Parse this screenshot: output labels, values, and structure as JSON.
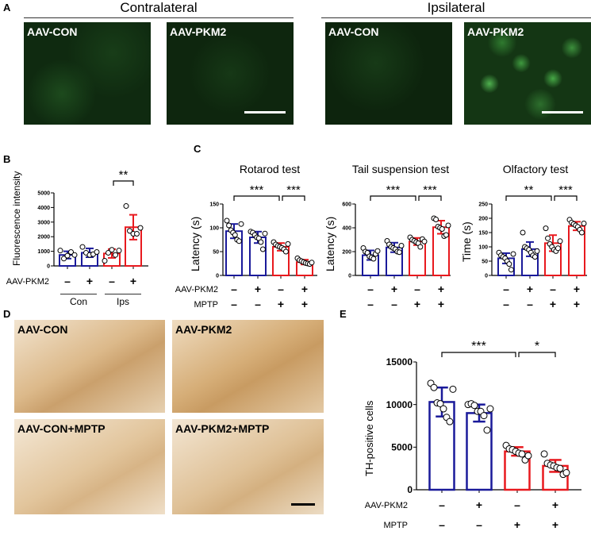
{
  "panel_labels": {
    "a": "A",
    "b": "B",
    "c": "C",
    "d": "D",
    "e": "E"
  },
  "panel_a": {
    "groups": [
      "Contralateral",
      "Ipsilateral"
    ],
    "images": [
      "AAV-CON",
      "AAV-PKM2",
      "AAV-CON",
      "AAV-PKM2"
    ]
  },
  "panel_b": {
    "row_label": "AAV-PKM2",
    "signs": [
      "–",
      "+",
      "–",
      "+"
    ],
    "group_labels": [
      "Con",
      "Ips"
    ]
  },
  "panel_c": {
    "row_labels": [
      "AAV-PKM2",
      "MPTP"
    ],
    "pkm2_signs": [
      "–",
      "+",
      "–",
      "+"
    ],
    "mptp_signs": [
      "–",
      "–",
      "+",
      "+"
    ]
  },
  "panel_d": {
    "images": [
      "AAV-CON",
      "AAV-PKM2",
      "AAV-CON+MPTP",
      "AAV-PKM2+MPTP"
    ]
  },
  "panel_e": {
    "row_labels": [
      "AAV-PKM2",
      "MPTP"
    ],
    "pkm2_signs": [
      "–",
      "+",
      "–",
      "+"
    ],
    "mptp_signs": [
      "–",
      "–",
      "+",
      "+"
    ]
  },
  "colors": {
    "blue": "#1a1a9a",
    "red": "#e8191e"
  },
  "chart_data": [
    {
      "id": "b",
      "type": "bar",
      "title": "",
      "ylabel": "Fluorescence intensity",
      "ylim": [
        0,
        5000
      ],
      "yticks": [
        0,
        1000,
        2000,
        3000,
        4000,
        5000
      ],
      "means": [
        750,
        900,
        850,
        2650
      ],
      "sd": [
        250,
        300,
        300,
        850
      ],
      "colors": [
        "blue",
        "blue",
        "red",
        "red"
      ],
      "points": [
        [
          1050,
          500,
          700,
          950,
          750
        ],
        [
          1300,
          900,
          750,
          800,
          950
        ],
        [
          350,
          900,
          1100,
          750,
          1050
        ],
        [
          4100,
          2400,
          2200,
          2200,
          2600
        ]
      ],
      "sig": [
        {
          "from": 2,
          "to": 3,
          "label": "**"
        }
      ]
    },
    {
      "id": "c1",
      "type": "bar",
      "title": "Rotarod test",
      "ylabel": "Latency (s)",
      "ylim": [
        0,
        150
      ],
      "yticks": [
        0,
        50,
        100,
        150
      ],
      "means": [
        93,
        80,
        60,
        28
      ],
      "sd": [
        15,
        12,
        8,
        5
      ],
      "colors": [
        "blue",
        "blue",
        "red",
        "red"
      ],
      "points": [
        [
          115,
          105,
          95,
          90,
          85,
          75,
          72,
          108
        ],
        [
          92,
          90,
          85,
          80,
          78,
          70,
          55,
          88
        ],
        [
          70,
          65,
          62,
          60,
          58,
          55,
          50,
          66
        ],
        [
          36,
          32,
          30,
          28,
          26,
          25,
          24,
          27
        ]
      ],
      "sig": [
        {
          "from": 0,
          "to": 2,
          "label": "***"
        },
        {
          "from": 2,
          "to": 3,
          "label": "***"
        }
      ]
    },
    {
      "id": "c2",
      "type": "bar",
      "title": "Tail suspension test",
      "ylabel": "Latency (s)",
      "ylim": [
        0,
        600
      ],
      "yticks": [
        0,
        200,
        400,
        600
      ],
      "means": [
        170,
        235,
        285,
        405
      ],
      "sd": [
        40,
        40,
        30,
        55
      ],
      "colors": [
        "blue",
        "blue",
        "red",
        "red"
      ],
      "points": [
        [
          230,
          200,
          190,
          160,
          150,
          140,
          180,
          205
        ],
        [
          290,
          260,
          240,
          230,
          220,
          200,
          195,
          250
        ],
        [
          320,
          300,
          290,
          280,
          270,
          240,
          305,
          285
        ],
        [
          480,
          470,
          410,
          400,
          390,
          330,
          340,
          420
        ]
      ],
      "sig": [
        {
          "from": 0,
          "to": 2,
          "label": "***"
        },
        {
          "from": 2,
          "to": 3,
          "label": "***"
        }
      ]
    },
    {
      "id": "c3",
      "type": "bar",
      "title": "Olfactory test",
      "ylabel": "Time (s)",
      "ylim": [
        0,
        250
      ],
      "yticks": [
        0,
        50,
        100,
        150,
        200,
        250
      ],
      "means": [
        60,
        92,
        113,
        173
      ],
      "sd": [
        18,
        25,
        28,
        15
      ],
      "colors": [
        "blue",
        "blue",
        "red",
        "red"
      ],
      "points": [
        [
          80,
          70,
          65,
          60,
          50,
          40,
          20,
          75
        ],
        [
          150,
          100,
          95,
          90,
          80,
          70,
          65,
          85
        ],
        [
          165,
          130,
          110,
          100,
          90,
          85,
          95,
          120
        ],
        [
          195,
          185,
          180,
          175,
          170,
          160,
          150,
          182
        ]
      ],
      "sig": [
        {
          "from": 0,
          "to": 2,
          "label": "**"
        },
        {
          "from": 2,
          "to": 3,
          "label": "***"
        }
      ]
    },
    {
      "id": "e",
      "type": "bar",
      "title": "",
      "ylabel": "TH-positive cells",
      "ylim": [
        0,
        15000
      ],
      "yticks": [
        0,
        5000,
        10000,
        15000
      ],
      "means": [
        10300,
        9000,
        4500,
        2800
      ],
      "sd": [
        1700,
        1000,
        500,
        700
      ],
      "colors": [
        "blue",
        "blue",
        "red",
        "red"
      ],
      "points": [
        [
          12500,
          12000,
          10200,
          10100,
          9500,
          8500,
          8000,
          11800
        ],
        [
          10000,
          10100,
          9900,
          9200,
          9200,
          8700,
          7000,
          9500
        ],
        [
          5200,
          4800,
          4700,
          4500,
          4300,
          4200,
          3500,
          4000
        ],
        [
          4200,
          3100,
          2900,
          2800,
          2600,
          2500,
          1800,
          2000
        ]
      ],
      "sig": [
        {
          "from": 0,
          "to": 2,
          "label": "***"
        },
        {
          "from": 2,
          "to": 3,
          "label": "*"
        }
      ]
    }
  ]
}
